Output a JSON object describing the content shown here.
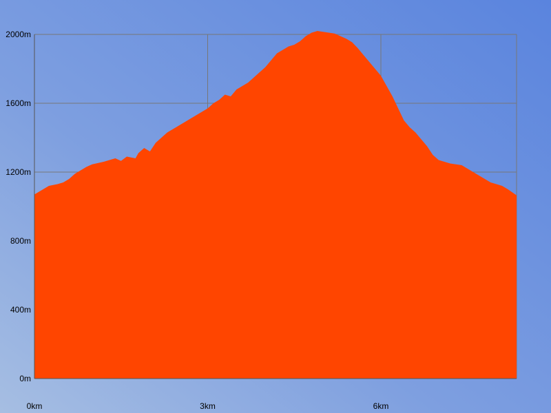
{
  "chart_data": {
    "type": "area",
    "title": "",
    "xlabel": "",
    "ylabel": "",
    "x_unit": "km",
    "y_unit": "m",
    "xlim": [
      0,
      8.35
    ],
    "ylim": [
      0,
      2000
    ],
    "x_ticks": [
      0,
      3,
      6
    ],
    "x_tick_labels": [
      "0km",
      "3km",
      "6km"
    ],
    "y_ticks": [
      0,
      400,
      800,
      1200,
      1600,
      2000
    ],
    "y_tick_labels": [
      "0m",
      "400m",
      "800m",
      "1200m",
      "1600m",
      "2000m"
    ],
    "grid": true,
    "legend": "none",
    "fill_color": "#ff4500",
    "grid_color": "#777777",
    "series": [
      {
        "x": [
          0,
          0.15,
          0.25,
          0.4,
          0.5,
          0.6,
          0.7,
          0.8,
          0.9,
          1.0,
          1.2,
          1.3,
          1.4,
          1.5,
          1.6,
          1.75,
          1.8,
          1.9,
          2.0,
          2.1,
          2.2,
          2.3,
          2.4,
          2.5,
          2.6,
          2.7,
          2.8,
          2.9,
          3.0,
          3.1,
          3.2,
          3.3,
          3.4,
          3.5,
          3.6,
          3.7,
          3.8,
          3.9,
          4.0,
          4.1,
          4.2,
          4.3,
          4.4,
          4.5,
          4.6,
          4.7,
          4.8,
          4.9,
          5.0,
          5.1,
          5.2,
          5.3,
          5.4,
          5.5,
          5.6,
          5.7,
          5.8,
          5.9,
          6.0,
          6.1,
          6.2,
          6.3,
          6.4,
          6.5,
          6.6,
          6.8,
          6.9,
          7.0,
          7.1,
          7.2,
          7.4,
          7.5,
          7.6,
          7.8,
          7.9,
          8.0,
          8.1,
          8.2,
          8.35
        ],
        "y": [
          1070,
          1100,
          1120,
          1130,
          1140,
          1160,
          1190,
          1210,
          1230,
          1245,
          1260,
          1270,
          1280,
          1265,
          1290,
          1280,
          1310,
          1340,
          1320,
          1370,
          1400,
          1430,
          1450,
          1470,
          1490,
          1510,
          1530,
          1550,
          1570,
          1600,
          1620,
          1650,
          1640,
          1680,
          1700,
          1720,
          1750,
          1780,
          1810,
          1850,
          1890,
          1910,
          1930,
          1940,
          1960,
          1990,
          2010,
          2020,
          2015,
          2010,
          2005,
          1990,
          1975,
          1955,
          1920,
          1880,
          1840,
          1800,
          1760,
          1700,
          1640,
          1570,
          1500,
          1460,
          1430,
          1350,
          1300,
          1270,
          1260,
          1250,
          1240,
          1220,
          1200,
          1160,
          1140,
          1130,
          1120,
          1100,
          1065
        ]
      }
    ]
  }
}
